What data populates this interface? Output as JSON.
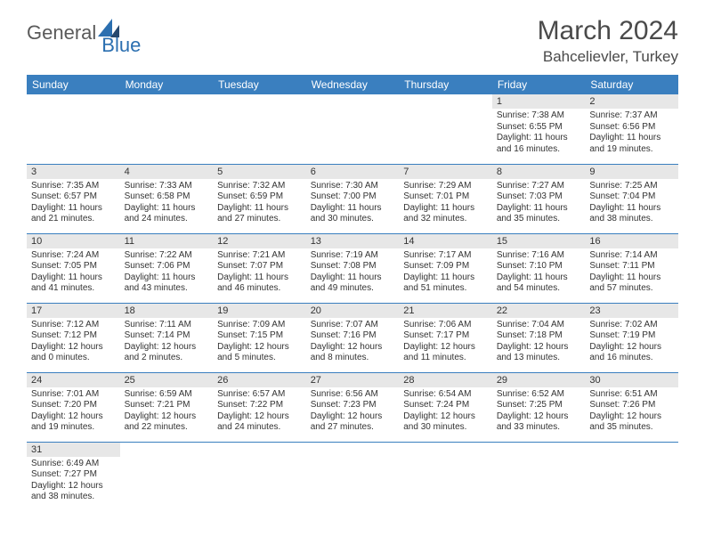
{
  "logo": {
    "part1": "General",
    "part2": "Blue"
  },
  "title": "March 2024",
  "location": "Bahcelievler, Turkey",
  "header_bg": "#3a7fbf",
  "header_fg": "#ffffff",
  "daynum_bg": "#e7e7e7",
  "border_color": "#3a7fbf",
  "weekdays": [
    "Sunday",
    "Monday",
    "Tuesday",
    "Wednesday",
    "Thursday",
    "Friday",
    "Saturday"
  ],
  "weeks": [
    [
      {
        "day": "",
        "sunrise": "",
        "sunset": "",
        "daylight": ""
      },
      {
        "day": "",
        "sunrise": "",
        "sunset": "",
        "daylight": ""
      },
      {
        "day": "",
        "sunrise": "",
        "sunset": "",
        "daylight": ""
      },
      {
        "day": "",
        "sunrise": "",
        "sunset": "",
        "daylight": ""
      },
      {
        "day": "",
        "sunrise": "",
        "sunset": "",
        "daylight": ""
      },
      {
        "day": "1",
        "sunrise": "Sunrise: 7:38 AM",
        "sunset": "Sunset: 6:55 PM",
        "daylight": "Daylight: 11 hours and 16 minutes."
      },
      {
        "day": "2",
        "sunrise": "Sunrise: 7:37 AM",
        "sunset": "Sunset: 6:56 PM",
        "daylight": "Daylight: 11 hours and 19 minutes."
      }
    ],
    [
      {
        "day": "3",
        "sunrise": "Sunrise: 7:35 AM",
        "sunset": "Sunset: 6:57 PM",
        "daylight": "Daylight: 11 hours and 21 minutes."
      },
      {
        "day": "4",
        "sunrise": "Sunrise: 7:33 AM",
        "sunset": "Sunset: 6:58 PM",
        "daylight": "Daylight: 11 hours and 24 minutes."
      },
      {
        "day": "5",
        "sunrise": "Sunrise: 7:32 AM",
        "sunset": "Sunset: 6:59 PM",
        "daylight": "Daylight: 11 hours and 27 minutes."
      },
      {
        "day": "6",
        "sunrise": "Sunrise: 7:30 AM",
        "sunset": "Sunset: 7:00 PM",
        "daylight": "Daylight: 11 hours and 30 minutes."
      },
      {
        "day": "7",
        "sunrise": "Sunrise: 7:29 AM",
        "sunset": "Sunset: 7:01 PM",
        "daylight": "Daylight: 11 hours and 32 minutes."
      },
      {
        "day": "8",
        "sunrise": "Sunrise: 7:27 AM",
        "sunset": "Sunset: 7:03 PM",
        "daylight": "Daylight: 11 hours and 35 minutes."
      },
      {
        "day": "9",
        "sunrise": "Sunrise: 7:25 AM",
        "sunset": "Sunset: 7:04 PM",
        "daylight": "Daylight: 11 hours and 38 minutes."
      }
    ],
    [
      {
        "day": "10",
        "sunrise": "Sunrise: 7:24 AM",
        "sunset": "Sunset: 7:05 PM",
        "daylight": "Daylight: 11 hours and 41 minutes."
      },
      {
        "day": "11",
        "sunrise": "Sunrise: 7:22 AM",
        "sunset": "Sunset: 7:06 PM",
        "daylight": "Daylight: 11 hours and 43 minutes."
      },
      {
        "day": "12",
        "sunrise": "Sunrise: 7:21 AM",
        "sunset": "Sunset: 7:07 PM",
        "daylight": "Daylight: 11 hours and 46 minutes."
      },
      {
        "day": "13",
        "sunrise": "Sunrise: 7:19 AM",
        "sunset": "Sunset: 7:08 PM",
        "daylight": "Daylight: 11 hours and 49 minutes."
      },
      {
        "day": "14",
        "sunrise": "Sunrise: 7:17 AM",
        "sunset": "Sunset: 7:09 PM",
        "daylight": "Daylight: 11 hours and 51 minutes."
      },
      {
        "day": "15",
        "sunrise": "Sunrise: 7:16 AM",
        "sunset": "Sunset: 7:10 PM",
        "daylight": "Daylight: 11 hours and 54 minutes."
      },
      {
        "day": "16",
        "sunrise": "Sunrise: 7:14 AM",
        "sunset": "Sunset: 7:11 PM",
        "daylight": "Daylight: 11 hours and 57 minutes."
      }
    ],
    [
      {
        "day": "17",
        "sunrise": "Sunrise: 7:12 AM",
        "sunset": "Sunset: 7:12 PM",
        "daylight": "Daylight: 12 hours and 0 minutes."
      },
      {
        "day": "18",
        "sunrise": "Sunrise: 7:11 AM",
        "sunset": "Sunset: 7:14 PM",
        "daylight": "Daylight: 12 hours and 2 minutes."
      },
      {
        "day": "19",
        "sunrise": "Sunrise: 7:09 AM",
        "sunset": "Sunset: 7:15 PM",
        "daylight": "Daylight: 12 hours and 5 minutes."
      },
      {
        "day": "20",
        "sunrise": "Sunrise: 7:07 AM",
        "sunset": "Sunset: 7:16 PM",
        "daylight": "Daylight: 12 hours and 8 minutes."
      },
      {
        "day": "21",
        "sunrise": "Sunrise: 7:06 AM",
        "sunset": "Sunset: 7:17 PM",
        "daylight": "Daylight: 12 hours and 11 minutes."
      },
      {
        "day": "22",
        "sunrise": "Sunrise: 7:04 AM",
        "sunset": "Sunset: 7:18 PM",
        "daylight": "Daylight: 12 hours and 13 minutes."
      },
      {
        "day": "23",
        "sunrise": "Sunrise: 7:02 AM",
        "sunset": "Sunset: 7:19 PM",
        "daylight": "Daylight: 12 hours and 16 minutes."
      }
    ],
    [
      {
        "day": "24",
        "sunrise": "Sunrise: 7:01 AM",
        "sunset": "Sunset: 7:20 PM",
        "daylight": "Daylight: 12 hours and 19 minutes."
      },
      {
        "day": "25",
        "sunrise": "Sunrise: 6:59 AM",
        "sunset": "Sunset: 7:21 PM",
        "daylight": "Daylight: 12 hours and 22 minutes."
      },
      {
        "day": "26",
        "sunrise": "Sunrise: 6:57 AM",
        "sunset": "Sunset: 7:22 PM",
        "daylight": "Daylight: 12 hours and 24 minutes."
      },
      {
        "day": "27",
        "sunrise": "Sunrise: 6:56 AM",
        "sunset": "Sunset: 7:23 PM",
        "daylight": "Daylight: 12 hours and 27 minutes."
      },
      {
        "day": "28",
        "sunrise": "Sunrise: 6:54 AM",
        "sunset": "Sunset: 7:24 PM",
        "daylight": "Daylight: 12 hours and 30 minutes."
      },
      {
        "day": "29",
        "sunrise": "Sunrise: 6:52 AM",
        "sunset": "Sunset: 7:25 PM",
        "daylight": "Daylight: 12 hours and 33 minutes."
      },
      {
        "day": "30",
        "sunrise": "Sunrise: 6:51 AM",
        "sunset": "Sunset: 7:26 PM",
        "daylight": "Daylight: 12 hours and 35 minutes."
      }
    ],
    [
      {
        "day": "31",
        "sunrise": "Sunrise: 6:49 AM",
        "sunset": "Sunset: 7:27 PM",
        "daylight": "Daylight: 12 hours and 38 minutes."
      },
      {
        "day": "",
        "sunrise": "",
        "sunset": "",
        "daylight": ""
      },
      {
        "day": "",
        "sunrise": "",
        "sunset": "",
        "daylight": ""
      },
      {
        "day": "",
        "sunrise": "",
        "sunset": "",
        "daylight": ""
      },
      {
        "day": "",
        "sunrise": "",
        "sunset": "",
        "daylight": ""
      },
      {
        "day": "",
        "sunrise": "",
        "sunset": "",
        "daylight": ""
      },
      {
        "day": "",
        "sunrise": "",
        "sunset": "",
        "daylight": ""
      }
    ]
  ]
}
